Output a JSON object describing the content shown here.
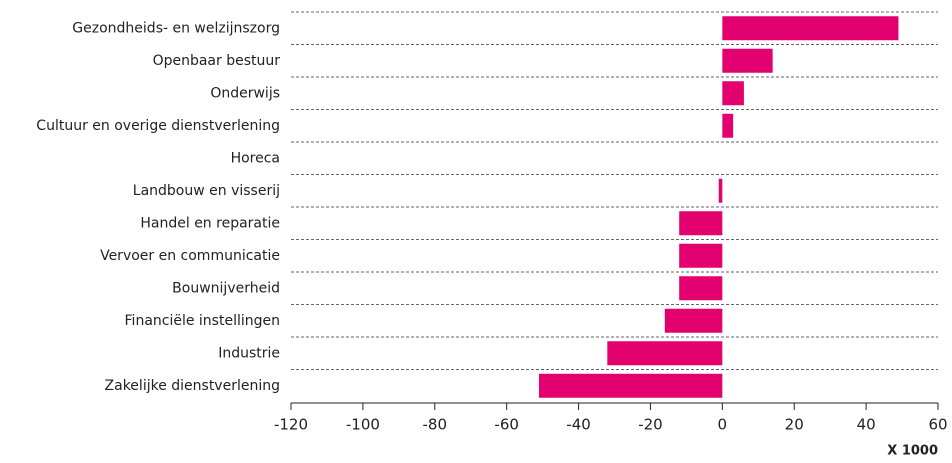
{
  "chart_data": {
    "type": "barh",
    "categories": [
      "Gezondheids- en welzijnszorg",
      "Openbaar bestuur",
      "Onderwijs",
      "Cultuur en overige dienstverlening",
      "Horeca",
      "Landbouw en visserij",
      "Handel en reparatie",
      "Vervoer en communicatie",
      "Bouwnijverheid",
      "Financiële instellingen",
      "Industrie",
      "Zakelijke dienstverlening"
    ],
    "values": [
      49,
      14,
      6,
      3,
      0,
      -1,
      -12,
      -12,
      -12,
      -16,
      -32,
      -51
    ],
    "color": "#e3006f",
    "xlim": [
      -120,
      60
    ],
    "xticks": [
      -120,
      -100,
      -80,
      -60,
      -40,
      -20,
      0,
      20,
      40,
      60
    ],
    "x_unit_label": "X 1000"
  }
}
